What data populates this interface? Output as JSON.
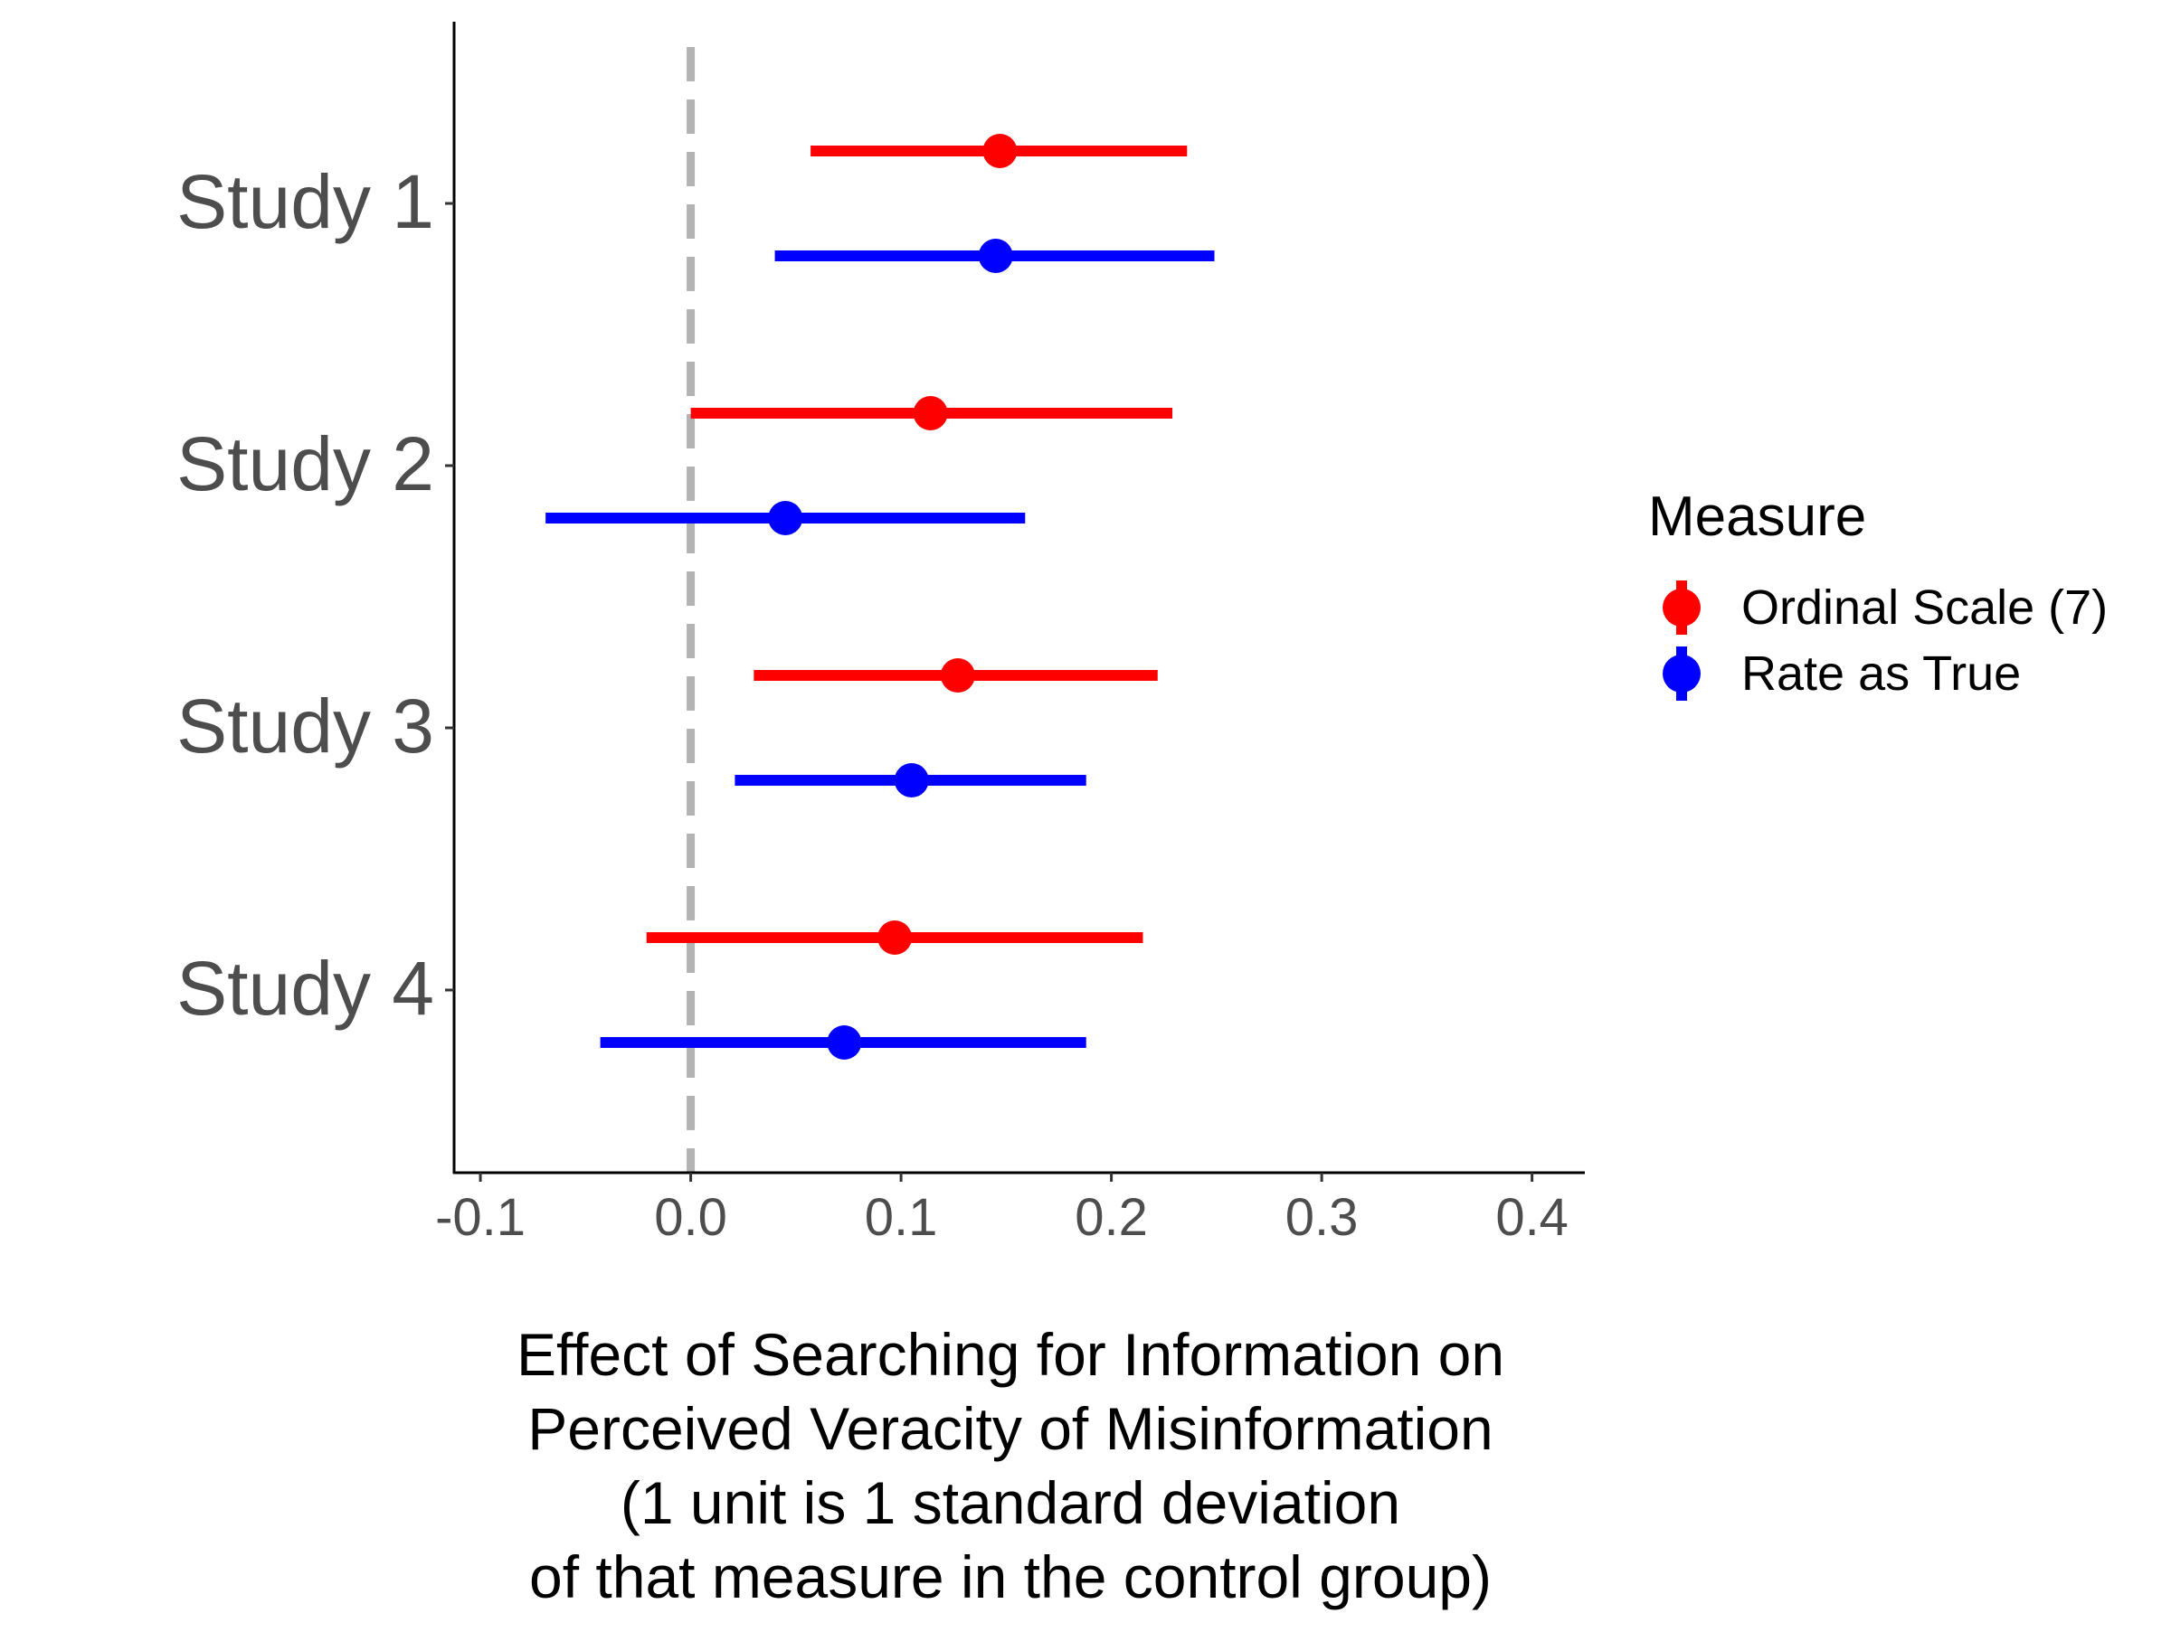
{
  "chart_data": {
    "type": "scatter",
    "subtype": "forest-plot",
    "title": "",
    "xlabel_lines": [
      "Effect of Searching for Information on",
      "Perceived Veracity of Misinformation",
      "(1 unit is 1 standard deviation",
      "of that measure in the control group)"
    ],
    "ylabel": "",
    "xlim": [
      -0.1125,
      0.4251
    ],
    "xticks": [
      -0.1,
      0.0,
      0.1,
      0.2,
      0.3,
      0.4
    ],
    "xtick_labels": [
      "-0.1",
      "0.0",
      "0.1",
      "0.2",
      "0.3",
      "0.4"
    ],
    "categories": [
      "Study 1",
      "Study 2",
      "Study 3",
      "Study 4"
    ],
    "reference_line": {
      "x": 0.0,
      "style": "dashed",
      "color": "#b3b3b3"
    },
    "grid": false,
    "legend": {
      "title": "Measure",
      "position": "right"
    },
    "series": [
      {
        "name": "Ordinal Scale (7)",
        "color": "#ff0000",
        "estimate": [
          0.147,
          0.114,
          0.127,
          0.097
        ],
        "lower": [
          0.057,
          0.0,
          0.03,
          -0.021
        ],
        "upper": [
          0.236,
          0.229,
          0.222,
          0.215
        ]
      },
      {
        "name": "Rate as True",
        "color": "#0000ff",
        "estimate": [
          0.145,
          0.045,
          0.105,
          0.073
        ],
        "lower": [
          0.04,
          -0.069,
          0.021,
          -0.043
        ],
        "upper": [
          0.249,
          0.159,
          0.188,
          0.188
        ]
      }
    ]
  }
}
